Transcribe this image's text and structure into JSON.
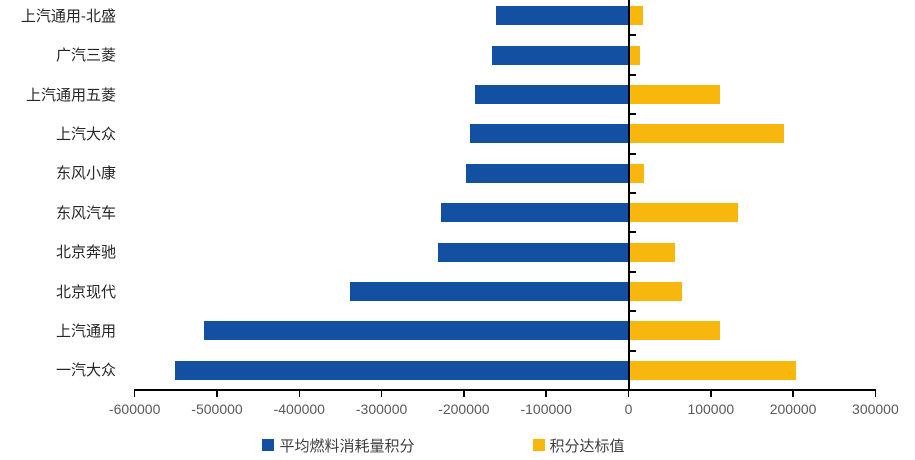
{
  "chart_data": {
    "type": "bar",
    "orientation": "horizontal",
    "title": "",
    "xlabel": "",
    "ylabel": "",
    "grid": false,
    "legend_position": "bottom",
    "categories": [
      "上汽通用-北盛",
      "广汽三菱",
      "上汽通用五菱",
      "上汽大众",
      "东风小康",
      "东风汽车",
      "北京奔驰",
      "北京现代",
      "上汽通用",
      "一汽大众"
    ],
    "series": [
      {
        "name": "平均燃料消耗量积分",
        "color": "#1450A2",
        "values": [
          -161000,
          -166000,
          -187000,
          -193000,
          -197000,
          -228000,
          -232000,
          -338000,
          -516000,
          -551000
        ]
      },
      {
        "name": "积分达标值",
        "color": "#F8B70D",
        "values": [
          18000,
          14000,
          111000,
          189000,
          19000,
          133000,
          57000,
          65000,
          111000,
          203000
        ]
      }
    ],
    "xlim": [
      -600000,
      300000
    ],
    "x_ticks": [
      -600000,
      -500000,
      -400000,
      -300000,
      -200000,
      -100000,
      0,
      100000,
      200000,
      300000
    ]
  },
  "colors": {
    "axis": "#000000",
    "tick_label": "#595959",
    "category_label": "#262626",
    "background": "#ffffff"
  }
}
